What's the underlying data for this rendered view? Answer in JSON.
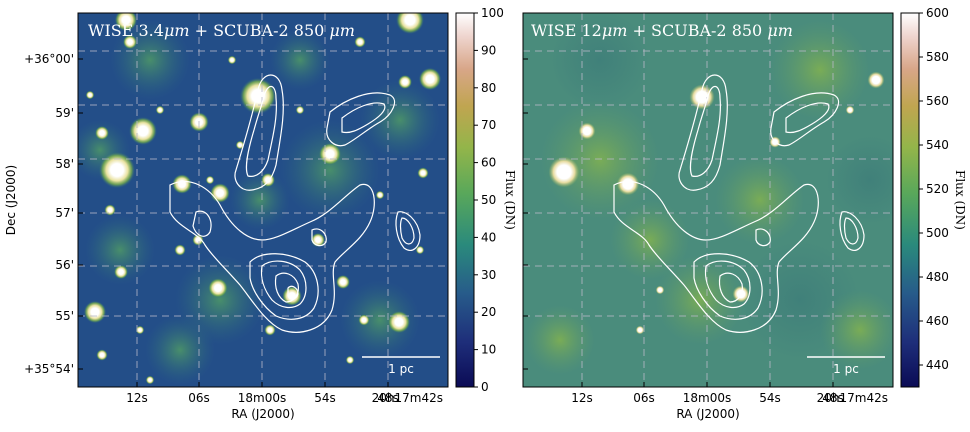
{
  "panels": [
    {
      "title_prefix": "WISE 3.4",
      "title_mu": "μm",
      "title_suffix": " + SCUBA-2 850 ",
      "title_unit": "μm",
      "colorbar": {
        "ticks": [
          "0",
          "10",
          "20",
          "30",
          "40",
          "50",
          "60",
          "70",
          "80",
          "90",
          "100"
        ],
        "label": "Flux (DN)"
      },
      "scale_bar": "1 pc"
    },
    {
      "title_prefix": "WISE 12",
      "title_mu": "μm",
      "title_suffix": " + SCUBA-2 850 ",
      "title_unit": "μm",
      "colorbar": {
        "ticks": [
          "440",
          "460",
          "480",
          "500",
          "520",
          "540",
          "560",
          "580",
          "600"
        ],
        "label": "Flux (DN)"
      },
      "scale_bar": "1 pc"
    }
  ],
  "axes": {
    "ra_label": "RA (J2000)",
    "dec_label": "Dec (J2000)",
    "ra_ticks": [
      "12s",
      "06s",
      "18m00s",
      "54s",
      "48s",
      "20h17m42s"
    ],
    "dec_ticks": [
      "+36°00'",
      "59'",
      "58'",
      "57'",
      "56'",
      "55'",
      "+35°54'"
    ]
  },
  "colors": {
    "cmap_low": "#1a1a6e",
    "cmap_mid": "#2f8f77",
    "cmap_green": "#6ab04c",
    "cmap_high": "#ffffff",
    "contour": "#ffffff",
    "grid": "#b8b8c8"
  }
}
